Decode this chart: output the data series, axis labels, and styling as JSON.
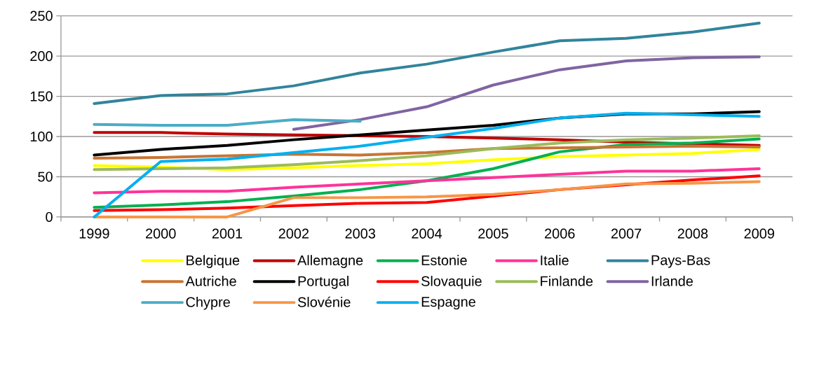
{
  "chart_data": {
    "type": "line",
    "categories": [
      "1999",
      "2000",
      "2001",
      "2002",
      "2003",
      "2004",
      "2005",
      "2006",
      "2007",
      "2008",
      "2009"
    ],
    "ylim": [
      0,
      250
    ],
    "yticks": [
      0,
      50,
      100,
      150,
      200,
      250
    ],
    "grid": "y",
    "legend": "bottom",
    "marker": "none",
    "line_style": "solid",
    "series": [
      {
        "name": "Belgique",
        "color": "#ffff00",
        "values": [
          64,
          62,
          59,
          61,
          64,
          66,
          71,
          75,
          77,
          79,
          84
        ]
      },
      {
        "name": "Allemagne",
        "color": "#c00000",
        "values": [
          105,
          105,
          103,
          102,
          101,
          100,
          98,
          96,
          93,
          91,
          89
        ]
      },
      {
        "name": "Estonie",
        "color": "#00b050",
        "values": [
          12,
          15,
          19,
          26,
          34,
          45,
          60,
          81,
          90,
          92,
          97
        ]
      },
      {
        "name": "Italie",
        "color": "#ff3399",
        "values": [
          30,
          32,
          32,
          37,
          41,
          45,
          49,
          53,
          57,
          57,
          60
        ]
      },
      {
        "name": "Pays-Bas",
        "color": "#31849b",
        "values": [
          141,
          151,
          153,
          163,
          179,
          190,
          205,
          219,
          222,
          230,
          241
        ]
      },
      {
        "name": "Autriche",
        "color": "#c87533",
        "values": [
          73,
          74,
          76,
          78,
          77,
          80,
          85,
          86,
          87,
          88,
          87
        ]
      },
      {
        "name": "Portugal",
        "color": "#000000",
        "values": [
          77,
          84,
          89,
          96,
          102,
          108,
          114,
          123,
          128,
          128,
          131
        ]
      },
      {
        "name": "Slovaquie",
        "color": "#ff0000",
        "values": [
          8,
          9,
          11,
          14,
          17,
          18,
          26,
          34,
          40,
          46,
          51
        ]
      },
      {
        "name": "Finlande",
        "color": "#9bbb59",
        "values": [
          59,
          60,
          61,
          65,
          70,
          76,
          85,
          92,
          96,
          98,
          101
        ]
      },
      {
        "name": "Irlande",
        "color": "#8064a2",
        "values": [
          null,
          null,
          null,
          109,
          121,
          137,
          164,
          183,
          194,
          198,
          199
        ]
      },
      {
        "name": "Chypre",
        "color": "#4bacc6",
        "values": [
          115,
          114,
          114,
          121,
          119,
          null,
          null,
          null,
          null,
          null,
          null
        ]
      },
      {
        "name": "Slovénie",
        "color": "#f79646",
        "values": [
          0,
          0,
          0,
          24,
          24,
          25,
          28,
          34,
          41,
          42,
          44
        ]
      },
      {
        "name": "Espagne",
        "color": "#00b0f0",
        "values": [
          0,
          69,
          72,
          80,
          88,
          99,
          110,
          123,
          129,
          127,
          125
        ]
      }
    ]
  }
}
